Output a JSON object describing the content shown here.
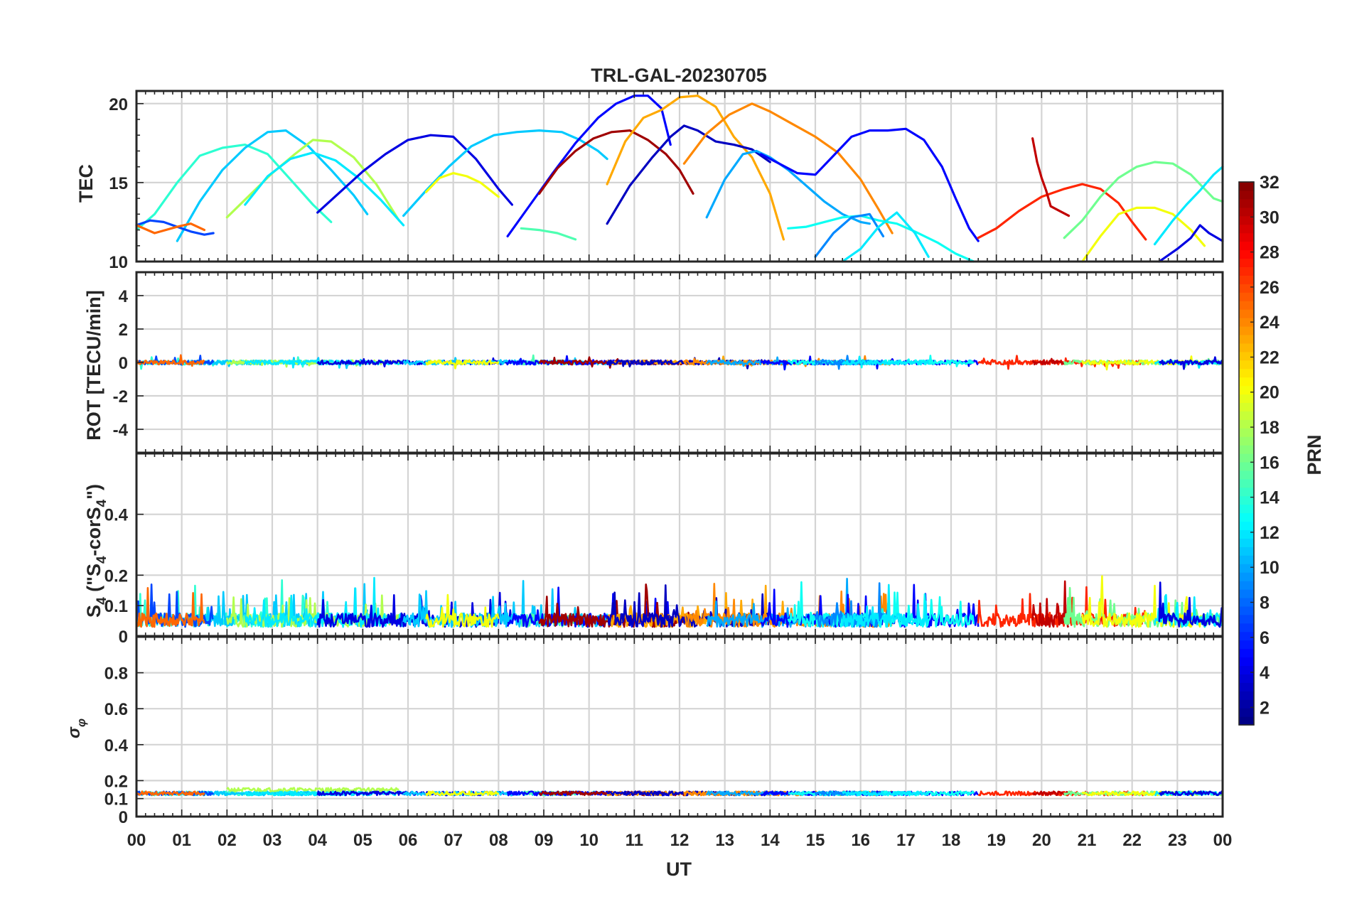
{
  "chart_data": {
    "type": "line",
    "title": "TRL-GAL-20230705",
    "xlabel": "UT",
    "x_tick_labels": [
      "00",
      "01",
      "02",
      "03",
      "04",
      "05",
      "06",
      "07",
      "08",
      "09",
      "10",
      "11",
      "12",
      "13",
      "14",
      "15",
      "16",
      "17",
      "18",
      "19",
      "20",
      "21",
      "22",
      "23",
      "00"
    ],
    "xlim_hours": [
      0,
      24
    ],
    "panels": [
      {
        "id": "tec",
        "ylabel": "TEC",
        "ylim": [
          10,
          20.8
        ],
        "y_ticks": [
          10,
          15,
          20
        ],
        "y_tick_labels": [
          "10",
          "15",
          "20"
        ],
        "series": [
          {
            "prn": 14,
            "x": [
              0.0,
              0.4,
              0.9,
              1.4,
              1.9,
              2.4,
              2.9,
              3.4,
              3.9,
              4.3
            ],
            "y": [
              12.0,
              13.0,
              15.0,
              16.7,
              17.2,
              17.4,
              16.8,
              15.2,
              13.6,
              12.5
            ]
          },
          {
            "prn": 11,
            "x": [
              0.9,
              1.4,
              1.9,
              2.4,
              2.9,
              3.3,
              3.8,
              4.3,
              4.8,
              5.1
            ],
            "y": [
              11.3,
              13.8,
              15.8,
              17.2,
              18.2,
              18.3,
              17.3,
              15.8,
              14.2,
              13.0
            ]
          },
          {
            "prn": 7,
            "x": [
              0.0,
              0.3,
              0.6,
              0.9,
              1.2,
              1.5,
              1.7
            ],
            "y": [
              12.3,
              12.6,
              12.5,
              12.2,
              11.9,
              11.7,
              11.8
            ]
          },
          {
            "prn": 25,
            "x": [
              0.0,
              0.4,
              0.9,
              1.2,
              1.5
            ],
            "y": [
              12.3,
              11.8,
              12.2,
              12.4,
              12.0
            ]
          },
          {
            "prn": 18,
            "x": [
              2.0,
              2.5,
              3.0,
              3.5,
              3.9,
              4.3,
              4.8,
              5.3,
              5.8
            ],
            "y": [
              12.8,
              14.2,
              15.6,
              16.8,
              17.7,
              17.6,
              16.6,
              14.9,
              12.6
            ]
          },
          {
            "prn": 12,
            "x": [
              2.4,
              2.9,
              3.4,
              3.9,
              4.4,
              4.9,
              5.4,
              5.9
            ],
            "y": [
              13.6,
              15.4,
              16.5,
              16.9,
              16.4,
              15.3,
              13.9,
              12.3
            ]
          },
          {
            "prn": 4,
            "x": [
              4.0,
              4.5,
              5.0,
              5.5,
              6.0,
              6.5,
              7.0,
              7.5,
              8.0,
              8.3
            ],
            "y": [
              13.1,
              14.4,
              15.7,
              16.8,
              17.7,
              18.0,
              17.9,
              16.5,
              14.6,
              13.6
            ]
          },
          {
            "prn": 11,
            "x": [
              5.9,
              6.4,
              6.9,
              7.4,
              7.9,
              8.4,
              8.9,
              9.4,
              9.8,
              10.2,
              10.4
            ],
            "y": [
              12.9,
              14.5,
              16.0,
              17.3,
              18.0,
              18.2,
              18.3,
              18.2,
              17.7,
              17.0,
              16.5
            ]
          },
          {
            "prn": 20,
            "x": [
              6.4,
              6.7,
              7.0,
              7.3,
              7.6,
              8.0
            ],
            "y": [
              14.4,
              15.3,
              15.6,
              15.4,
              15.0,
              14.1
            ]
          },
          {
            "prn": 15,
            "x": [
              8.5,
              8.9,
              9.3,
              9.7
            ],
            "y": [
              12.1,
              12.0,
              11.8,
              11.4
            ]
          },
          {
            "prn": 5,
            "x": [
              8.2,
              8.7,
              9.2,
              9.7,
              10.2,
              10.6,
              11.0,
              11.3,
              11.6,
              11.8
            ],
            "y": [
              11.6,
              13.6,
              15.6,
              17.5,
              19.1,
              20.0,
              20.5,
              20.5,
              19.7,
              17.4
            ]
          },
          {
            "prn": 31,
            "x": [
              8.9,
              9.3,
              9.7,
              10.1,
              10.5,
              10.9,
              11.3,
              11.7,
              12.0,
              12.3
            ],
            "y": [
              14.3,
              15.9,
              17.0,
              17.8,
              18.2,
              18.3,
              17.7,
              16.8,
              15.8,
              14.3
            ]
          },
          {
            "prn": 23,
            "x": [
              10.4,
              10.8,
              11.2,
              11.6,
              12.0,
              12.4,
              12.8,
              13.2,
              13.6,
              14.0,
              14.3
            ],
            "y": [
              14.9,
              17.6,
              19.1,
              19.6,
              20.4,
              20.5,
              19.8,
              17.9,
              16.6,
              14.3,
              11.4
            ]
          },
          {
            "prn": 3,
            "x": [
              10.4,
              10.9,
              11.4,
              11.8,
              12.1,
              12.4,
              12.8,
              13.2,
              13.6,
              14.0
            ],
            "y": [
              12.4,
              14.8,
              16.6,
              17.9,
              18.6,
              18.3,
              17.6,
              17.4,
              17.1,
              16.3
            ]
          },
          {
            "prn": 24,
            "x": [
              12.1,
              12.6,
              13.1,
              13.6,
              14.0,
              14.5,
              15.0,
              15.5,
              16.0,
              16.4,
              16.7
            ],
            "y": [
              16.2,
              18.1,
              19.3,
              20.0,
              19.5,
              18.7,
              17.9,
              16.9,
              15.2,
              13.3,
              11.8
            ]
          },
          {
            "prn": 10,
            "x": [
              12.6,
              13.0,
              13.4,
              13.7,
              14.0,
              14.4,
              14.8,
              15.2,
              15.6,
              16.0,
              16.2
            ],
            "y": [
              12.8,
              15.2,
              16.8,
              17.0,
              16.6,
              15.8,
              14.8,
              13.8,
              13.0,
              12.5,
              12.4
            ]
          },
          {
            "prn": 5,
            "x": [
              13.8,
              14.2,
              14.6,
              15.0,
              15.4,
              15.8,
              16.2,
              16.6,
              17.0,
              17.4,
              17.8,
              18.1,
              18.4,
              18.6
            ],
            "y": [
              16.8,
              16.2,
              15.6,
              15.5,
              16.7,
              17.9,
              18.3,
              18.3,
              18.4,
              17.7,
              16.0,
              14.0,
              12.1,
              11.3
            ]
          },
          {
            "prn": 13,
            "x": [
              14.4,
              14.8,
              15.2,
              15.6,
              16.0,
              16.4,
              16.8,
              17.2,
              17.7,
              18.1,
              18.5
            ],
            "y": [
              12.1,
              12.2,
              12.5,
              12.8,
              12.9,
              12.6,
              12.4,
              11.9,
              11.2,
              10.5,
              9.6
            ]
          },
          {
            "prn": 9,
            "x": [
              15.0,
              15.4,
              15.8,
              16.2,
              16.5
            ],
            "y": [
              10.3,
              11.8,
              12.8,
              13.0,
              11.6
            ]
          },
          {
            "prn": 12,
            "x": [
              15.6,
              16.0,
              16.4,
              16.8,
              17.2,
              17.5
            ],
            "y": [
              9.8,
              10.8,
              12.2,
              13.1,
              11.8,
              10.3
            ]
          },
          {
            "prn": 27,
            "x": [
              18.6,
              19.0,
              19.5,
              20.0,
              20.5,
              20.9,
              21.3,
              21.7,
              22.0,
              22.3
            ],
            "y": [
              11.5,
              12.1,
              13.2,
              14.1,
              14.6,
              14.9,
              14.6,
              13.7,
              12.5,
              11.4
            ]
          },
          {
            "prn": 30,
            "x": [
              19.8,
              19.9,
              20.0,
              20.1,
              20.2,
              20.4,
              20.6
            ],
            "y": [
              17.8,
              16.3,
              15.3,
              14.5,
              13.5,
              13.2,
              12.9
            ]
          },
          {
            "prn": 16,
            "x": [
              20.5,
              20.9,
              21.3,
              21.7,
              22.1,
              22.5,
              22.9,
              23.3,
              23.6,
              23.8,
              24.0
            ],
            "y": [
              11.5,
              12.6,
              14.1,
              15.3,
              16.0,
              16.3,
              16.2,
              15.5,
              14.6,
              14.0,
              13.8
            ]
          },
          {
            "prn": 20,
            "x": [
              20.9,
              21.3,
              21.7,
              22.1,
              22.5,
              22.9,
              23.3,
              23.6
            ],
            "y": [
              9.9,
              11.6,
              13.0,
              13.4,
              13.4,
              13.0,
              12.0,
              11.0
            ]
          },
          {
            "prn": 12,
            "x": [
              22.5,
              22.9,
              23.2,
              23.5,
              23.8,
              24.0
            ],
            "y": [
              11.1,
              12.6,
              13.6,
              14.5,
              15.5,
              16.0
            ]
          },
          {
            "prn": 4,
            "x": [
              22.6,
              23.0,
              23.3,
              23.5,
              23.7,
              24.0
            ],
            "y": [
              9.8,
              10.8,
              11.5,
              12.3,
              11.8,
              11.3
            ]
          }
        ]
      },
      {
        "id": "rot",
        "ylabel": "ROT [TECU/min]",
        "ylim": [
          -5.4,
          5.4
        ],
        "y_ticks": [
          -4,
          -2,
          0,
          2,
          4
        ],
        "y_tick_labels": [
          "-4",
          "-2",
          "0",
          "2",
          "4"
        ],
        "description": "All satellite traces remain near 0 TECU/min (within about ±0.3)."
      },
      {
        "id": "s4",
        "ylabel": "S4 (\"S4-corS4\")",
        "ylim": [
          0,
          0.6
        ],
        "y_ticks": [
          0,
          0.1,
          0.2,
          0.4
        ],
        "y_tick_labels": [
          "0",
          "0.1",
          "0.2",
          "0.4"
        ],
        "description": "Background S4 about 0.03–0.08 with spikes up to about 0.2."
      },
      {
        "id": "sigma_phi",
        "ylabel": "σφ",
        "ylim": [
          0,
          1
        ],
        "y_ticks": [
          0,
          0.1,
          0.2,
          0.4,
          0.6,
          0.8
        ],
        "y_tick_labels": [
          "0",
          "0.1",
          "0.2",
          "0.4",
          "0.6",
          "0.8"
        ],
        "description": "Phase scintillation index near 0.12–0.15 throughout the day."
      }
    ],
    "colorbar": {
      "label": "PRN",
      "colormap": "jet",
      "range": [
        1,
        32
      ],
      "ticks": [
        "2",
        "4",
        "6",
        "8",
        "10",
        "12",
        "14",
        "16",
        "18",
        "20",
        "22",
        "24",
        "26",
        "28",
        "30",
        "32"
      ]
    }
  }
}
